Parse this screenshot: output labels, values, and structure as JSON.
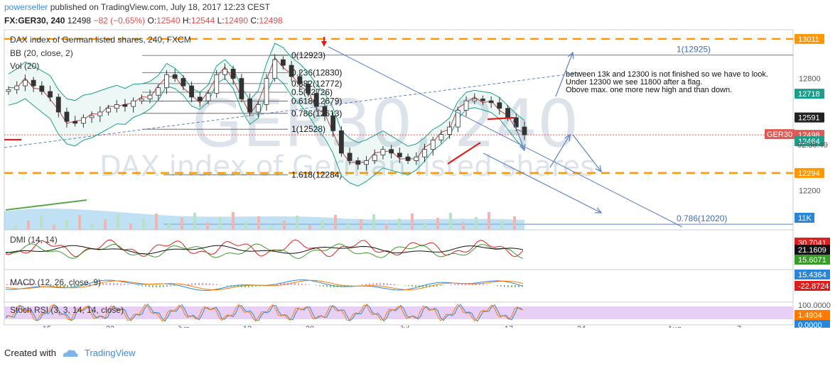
{
  "header": {
    "author": "powerseller",
    "published": "published on TradingView.com, July 18, 2017 12:23 CEST",
    "symbol": "FX:GER30, 240",
    "last": "12498",
    "change": "−82 (−0.65%)",
    "o_label": "O:",
    "o": "12540",
    "h_label": "H:",
    "h": "12544",
    "l_label": "L:",
    "l": "12490",
    "c_label": "C:",
    "c": "12498"
  },
  "legends": {
    "main": "DAX index of German listed shares, 240, FXCM",
    "bb": "BB (20, close, 2)",
    "vol": "Vol (20)",
    "dmi": "DMI (14, 14)",
    "macd": "MACD (12, 26, close, 9)",
    "stoch": "Stoch RSI (3, 3, 14, 14, close)"
  },
  "watermark": {
    "symbol": "GER30, 240",
    "desc": "DAX index of German listed shares"
  },
  "annotation": "between 13k and 12300 is not finished so we have to look.\nUnder 12300 we see 11800 after a flag.\nObove max. one more new high and than down.",
  "fib_levels": [
    {
      "label": "0(12923)",
      "price": 12923
    },
    {
      "label": "0.236(12830)",
      "price": 12830
    },
    {
      "label": "0.382(12772)",
      "price": 12772
    },
    {
      "label": "0.5(12726)",
      "price": 12726
    },
    {
      "label": "0.618(12679)",
      "price": 12679
    },
    {
      "label": "0.786(12613)",
      "price": 12613
    },
    {
      "label": "1(12528)",
      "price": 12528
    },
    {
      "label": "1.618(12284)",
      "price": 12284
    }
  ],
  "ext_levels": [
    {
      "label": "1(12925)",
      "price": 12925
    },
    {
      "label": "0.786(12020)",
      "price": 12020
    }
  ],
  "horizontal_lines": [
    {
      "price": 13011,
      "label": "13011",
      "color": "#ff9800"
    },
    {
      "price": 12294,
      "label": "12294",
      "color": "#ff9800"
    }
  ],
  "price_axis": {
    "ticks": [
      "12800",
      "12200"
    ],
    "tags": [
      {
        "label": "13011",
        "price": 13011,
        "bg": "#ff9800"
      },
      {
        "label": "12718",
        "price": 12718,
        "bg": "#1a9f8c"
      },
      {
        "label": "12591",
        "price": 12591,
        "bg": "#222222"
      },
      {
        "label": "12498",
        "price": 12498,
        "bg": "#e05a55"
      },
      {
        "label": "12464",
        "price": 12464,
        "bg": "#1a9f8c"
      },
      {
        "label": "12294",
        "price": 12294,
        "bg": "#ff9800"
      }
    ],
    "price_tag_symbol": "GER30",
    "countdown": "02:36:49",
    "volume_tag": "11K"
  },
  "dmi_axis": [
    {
      "label": "30.7041",
      "bg": "#d9201c"
    },
    {
      "label": "21.1609",
      "bg": "#111111"
    },
    {
      "label": "15.6071",
      "bg": "#3c9a2c"
    }
  ],
  "macd_axis": [
    {
      "label": "15.4364",
      "bg": "#2a86d9"
    },
    {
      "label": "-22.8724",
      "bg": "#d9201c"
    }
  ],
  "stoch_axis": [
    {
      "label": "100.0000",
      "bg": null
    },
    {
      "label": "1.4904",
      "bg": "#ff7b00"
    },
    {
      "label": "0.0000",
      "bg": "#2a86d9"
    }
  ],
  "time_axis": [
    "15",
    "23",
    "Jun",
    "12",
    "20",
    "Jul",
    "17",
    "24",
    "Aug",
    "7"
  ],
  "footer": {
    "created": "Created with",
    "brand": "TradingView"
  },
  "colors": {
    "accent": "#3d8cd6",
    "down": "#d9534f",
    "candle": "#333333",
    "bb": "#1a9f8c",
    "orange": "#ff9800",
    "stoch_bg": "#e8cff5"
  },
  "chart_data": {
    "type": "candlestick",
    "title": "DAX index of German listed shares, 240, FXCM",
    "ylim": [
      11990,
      13060
    ],
    "x": [
      "15",
      "23",
      "Jun",
      "12",
      "20",
      "Jul",
      "17",
      "24",
      "Aug",
      "7"
    ],
    "close_series_estimate": [
      12740,
      12760,
      12790,
      12760,
      12730,
      12700,
      12620,
      12570,
      12560,
      12590,
      12600,
      12620,
      12640,
      12660,
      12650,
      12680,
      12690,
      12710,
      12750,
      12820,
      12800,
      12760,
      12700,
      12680,
      12720,
      12820,
      12850,
      12800,
      12690,
      12620,
      12660,
      12800,
      12900,
      12870,
      12810,
      12770,
      12720,
      12650,
      12600,
      12520,
      12400,
      12360,
      12340,
      12360,
      12390,
      12420,
      12400,
      12380,
      12360,
      12380,
      12420,
      12470,
      12500,
      12540,
      12630,
      12680,
      12690,
      12680,
      12670,
      12640,
      12590,
      12540,
      12498
    ],
    "last": 12498
  }
}
